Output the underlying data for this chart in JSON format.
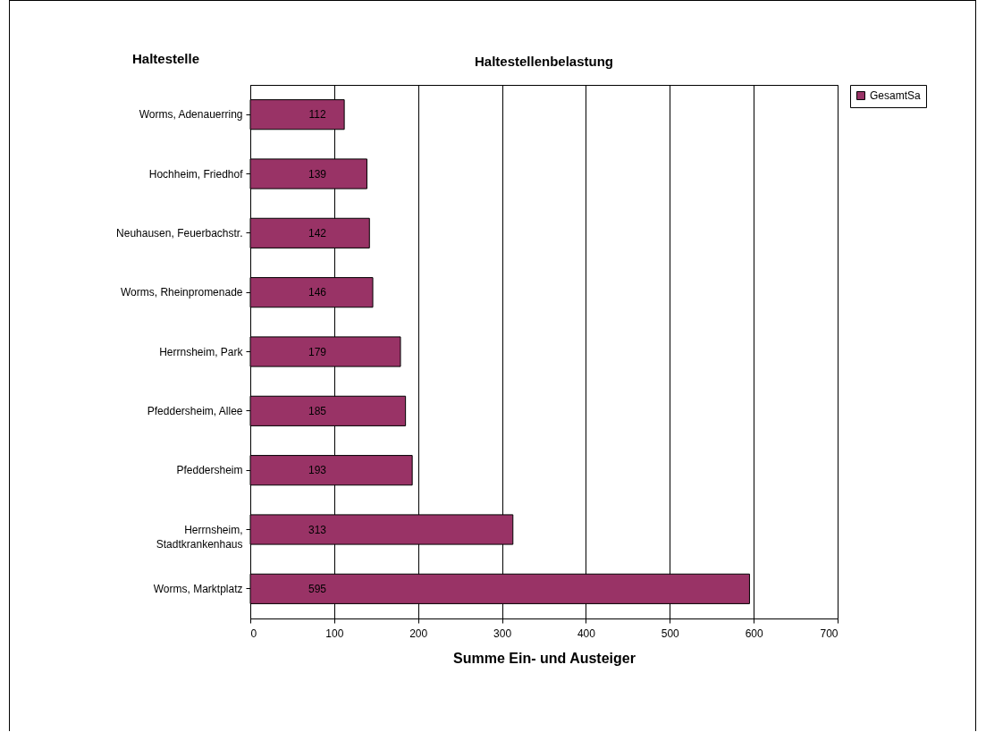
{
  "chart_data": {
    "type": "bar",
    "orientation": "horizontal",
    "title": "Haltestellenbelastung",
    "ylabel": "Haltestelle",
    "xlabel": "Summe Ein- und Austeiger",
    "categories": [
      "Worms, Adenauerring",
      "Hochheim, Friedhof",
      "Neuhausen, Feuerbachstr.",
      "Worms, Rheinpromenade",
      "Herrnsheim, Park",
      "Pfeddersheim, Allee",
      "Pfeddersheim",
      "Herrnsheim, Stadtkrankenhaus",
      "Worms, Marktplatz"
    ],
    "series": [
      {
        "name": "GesamtSa",
        "color": "#993366",
        "values": [
          112,
          139,
          142,
          146,
          179,
          185,
          193,
          313,
          595
        ]
      }
    ],
    "xlim": [
      0,
      700
    ],
    "xticks": [
      0,
      100,
      200,
      300,
      400,
      500,
      600,
      700
    ],
    "grid": "x",
    "legend": "right",
    "data_labels": true
  }
}
